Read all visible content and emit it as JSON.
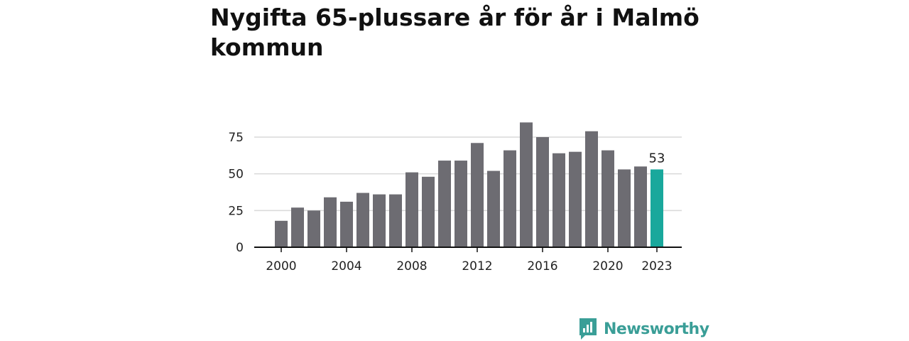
{
  "title": "Nygifta 65-plussare år för år i Malmö kommun",
  "brand": {
    "name": "Newsworthy",
    "color": "#3a9e97"
  },
  "colors": {
    "bar": "#6d6c72",
    "highlight": "#19a89c",
    "grid": "#d9d9d9",
    "axis": "#111111",
    "text": "#222222"
  },
  "chart_data": {
    "type": "bar",
    "x": [
      2000,
      2001,
      2002,
      2003,
      2004,
      2005,
      2006,
      2007,
      2008,
      2009,
      2010,
      2011,
      2012,
      2013,
      2014,
      2015,
      2016,
      2017,
      2018,
      2019,
      2020,
      2021,
      2022,
      2023
    ],
    "values": [
      18,
      27,
      25,
      34,
      31,
      37,
      36,
      36,
      51,
      48,
      59,
      59,
      71,
      52,
      66,
      85,
      75,
      64,
      65,
      79,
      66,
      53,
      55,
      53
    ],
    "highlight_index": 23,
    "highlight_label": "53",
    "x_ticks": [
      2000,
      2004,
      2008,
      2012,
      2016,
      2020,
      2023
    ],
    "y_ticks": [
      0,
      25,
      50,
      75
    ],
    "ylim": [
      0,
      85
    ],
    "grid": true,
    "xlabel": "",
    "ylabel": ""
  }
}
